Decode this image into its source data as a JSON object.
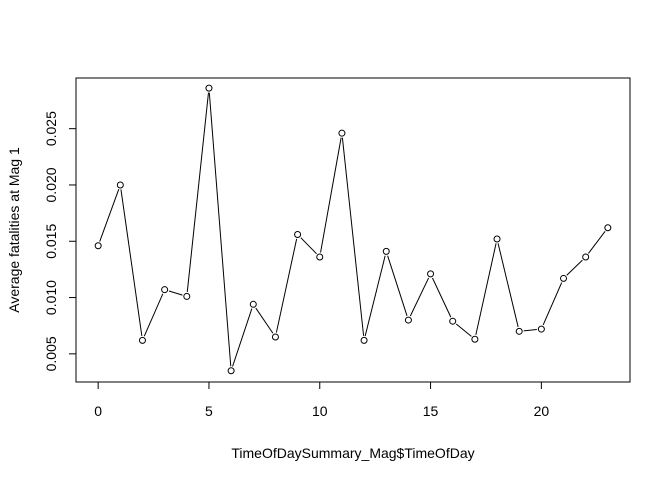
{
  "chart_data": {
    "type": "line",
    "title": "",
    "xlabel": "TimeOfDaySummary_Mag$TimeOfDay",
    "ylabel": "Average fatalities at Mag 1",
    "xlim": [
      -1,
      24
    ],
    "ylim": [
      0.0025,
      0.0295
    ],
    "xticks": [
      0,
      5,
      10,
      15,
      20
    ],
    "yticks": [
      0.005,
      0.01,
      0.015,
      0.02,
      0.025
    ],
    "xtick_labels": [
      "0",
      "5",
      "10",
      "15",
      "20"
    ],
    "ytick_labels": [
      "0.005",
      "0.010",
      "0.015",
      "0.020",
      "0.025"
    ],
    "grid": false,
    "series": [
      {
        "x": [
          0,
          1,
          2,
          3,
          4,
          5,
          6,
          7,
          8,
          9,
          10,
          11,
          12,
          13,
          14,
          15,
          16,
          17,
          18,
          19,
          20,
          21,
          22,
          23
        ],
        "values": [
          0.0146,
          0.02,
          0.0062,
          0.0107,
          0.0101,
          0.0286,
          0.0035,
          0.0094,
          0.0065,
          0.0156,
          0.0136,
          0.0246,
          0.0062,
          0.0141,
          0.008,
          0.0121,
          0.0079,
          0.0063,
          0.0152,
          0.007,
          0.0072,
          0.0117,
          0.0136,
          0.0162
        ]
      }
    ]
  }
}
